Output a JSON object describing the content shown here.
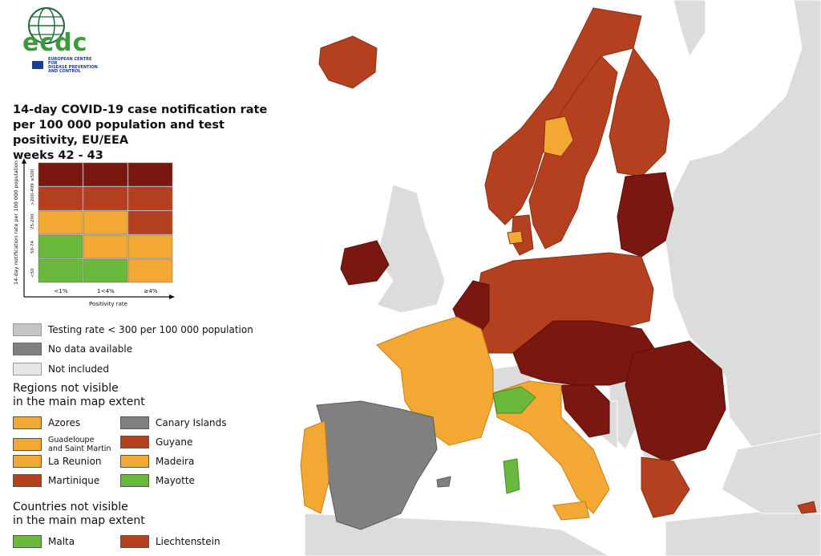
{
  "logo": {
    "word": "ecdc",
    "line1": "EUROPEAN CENTRE FOR",
    "line2": "DISEASE PREVENTION",
    "line3": "AND CONTROL"
  },
  "title": {
    "line1": "14-day COVID-19 case notification rate",
    "line2": "per 100 000 population and test positivity, EU/EEA",
    "line3": "weeks 42 - 43"
  },
  "matrix": {
    "y_axis_label": "14-day notification rate per 100 000 population",
    "x_axis_label": "Positivity rate",
    "rows": [
      "≥500",
      ">200-499",
      "75-200",
      "50-74",
      "<50"
    ],
    "cols": [
      "<1%",
      "1<4%",
      "≥4%"
    ],
    "colors": [
      [
        "#7a1711",
        "#7a1711",
        "#7a1711"
      ],
      [
        "#b5401f",
        "#b5401f",
        "#b5401f"
      ],
      [
        "#f3a833",
        "#f3a833",
        "#b5401f"
      ],
      [
        "#6ab83c",
        "#f3a833",
        "#f3a833"
      ],
      [
        "#6ab83c",
        "#6ab83c",
        "#f3a833"
      ]
    ]
  },
  "legend": {
    "testing": "Testing rate < 300 per 100 000 population",
    "nodata": "No data available",
    "notincluded": "Not included"
  },
  "regions": {
    "header1": "Regions not visible",
    "header2": "in the main map extent",
    "items": [
      {
        "label": "Azores",
        "color": "#f3a833"
      },
      {
        "label": "Canary Islands",
        "color": "#808080"
      },
      {
        "label": "Guadeloupe",
        "label2": "and Saint Martin",
        "color": "#f3a833"
      },
      {
        "label": "Guyane",
        "color": "#b5401f"
      },
      {
        "label": "La Reunion",
        "color": "#f3a833"
      },
      {
        "label": "Madeira",
        "color": "#f3a833"
      },
      {
        "label": "Martinique",
        "color": "#b5401f"
      },
      {
        "label": "Mayotte",
        "color": "#6ab83c"
      }
    ]
  },
  "countries": {
    "header1": "Countries not visible",
    "header2": "in the main map extent",
    "items": [
      {
        "label": "Malta",
        "color": "#6ab83c"
      },
      {
        "label": "Liechtenstein",
        "color": "#b5401f"
      }
    ]
  },
  "colors": {
    "dark_red": "#7a1711",
    "red": "#b5401f",
    "orange": "#f3a833",
    "green": "#6ab83c",
    "grey": "#808080",
    "light_grey": "#c4c4c4",
    "not_included": "#e0e0e0",
    "sea": "#ffffff"
  }
}
